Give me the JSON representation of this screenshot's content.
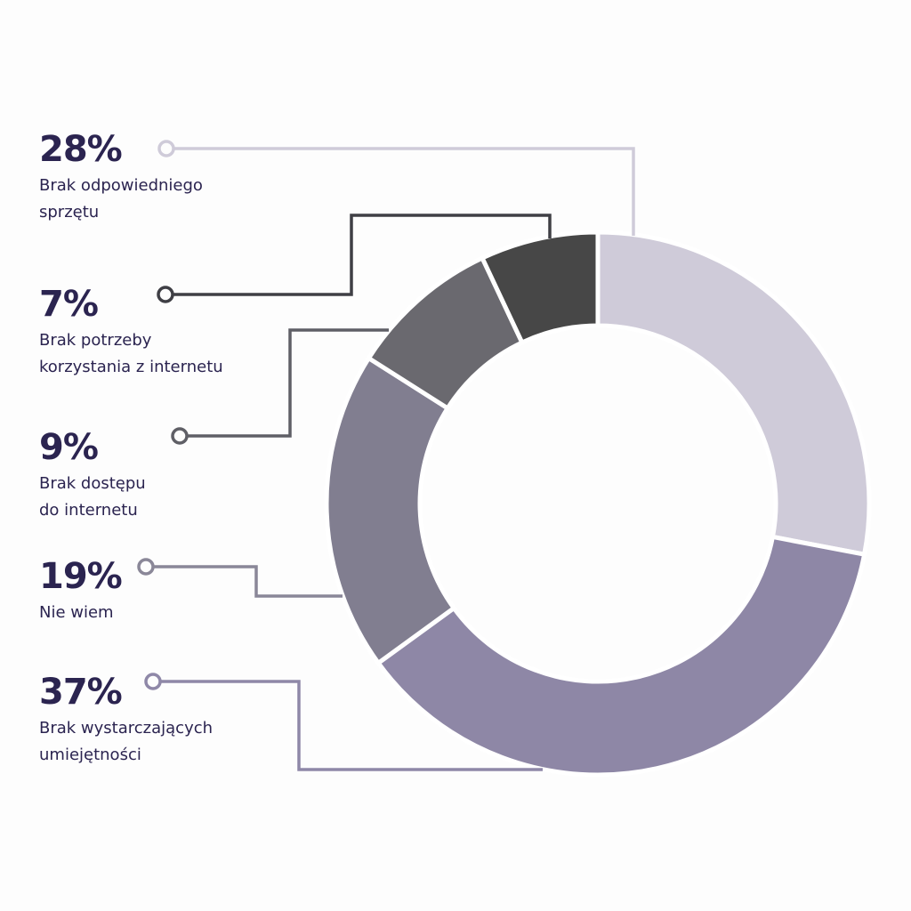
{
  "chart_data": {
    "type": "pie",
    "variant": "donut",
    "start": "top, clockwise",
    "slices": [
      {
        "value": 28,
        "label_pct": "28%",
        "label": [
          "Brak odpowiedniego",
          "sprzętu"
        ],
        "color": "#cfcbd9",
        "line_color": "#cfcbd9"
      },
      {
        "value": 37,
        "label_pct": "37%",
        "label": [
          "Brak wystarczających",
          "umiejętności"
        ],
        "color": "#8e87a6",
        "line_color": "#8f88a8"
      },
      {
        "value": 19,
        "label_pct": "19%",
        "label": [
          "Nie wiem"
        ],
        "color": "#817e90",
        "line_color": "#8a8798"
      },
      {
        "value": 9,
        "label_pct": "9%",
        "label": [
          "Brak dostępu",
          "do internetu"
        ],
        "color": "#6a696f",
        "line_color": "#5f5f66"
      },
      {
        "value": 7,
        "label_pct": "7%",
        "label": [
          "Brak potrzeby",
          "korzystania z internetu"
        ],
        "color": "#474747",
        "line_color": "#3f3f45"
      }
    ]
  }
}
